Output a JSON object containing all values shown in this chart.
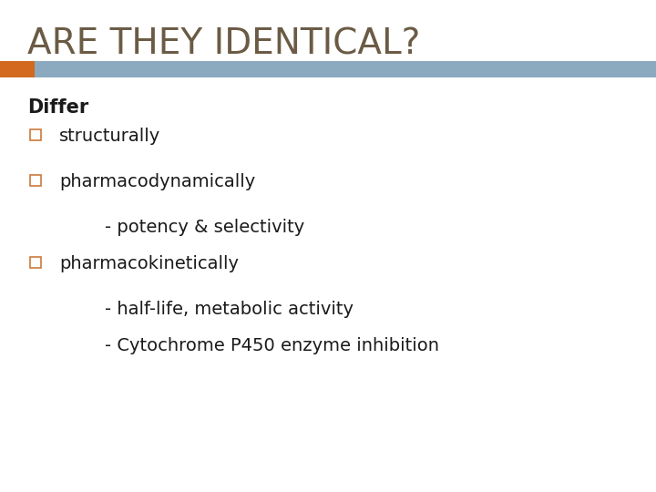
{
  "title": "ARE THEY IDENTICAL?",
  "title_color": "#6B5B45",
  "title_fontsize": 28,
  "bar_orange_color": "#D2691E",
  "bar_blue_color": "#8BAABF",
  "background_color": "#FFFFFF",
  "differ_text": "Differ",
  "differ_fontsize": 15,
  "text_color": "#1a1a1a",
  "bullet_outline_color": "#CC7A3C",
  "lines": [
    {
      "text": "structurally",
      "level": 1,
      "bullet": true
    },
    {
      "text": "pharmacodynamically",
      "level": 1,
      "bullet": true
    },
    {
      "text": "- potency & selectivity",
      "level": 2,
      "bullet": false
    },
    {
      "text": "pharmacokinetically",
      "level": 1,
      "bullet": true
    },
    {
      "text": "- half-life, metabolic activity",
      "level": 2,
      "bullet": false
    },
    {
      "text": "- Cytochrome P450 enzyme inhibition",
      "level": 2,
      "bullet": false
    }
  ]
}
